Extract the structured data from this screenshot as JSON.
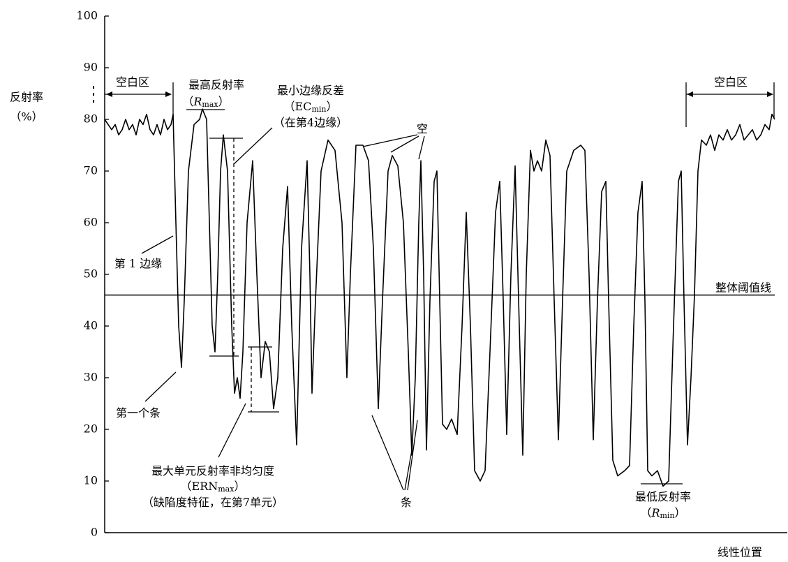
{
  "chart_data": {
    "type": "line",
    "ylabel": [
      "反射率",
      "（%）"
    ],
    "xlabel": "线性位置",
    "ylim": [
      0,
      100
    ],
    "yticks": [
      0,
      10,
      20,
      30,
      40,
      50,
      60,
      70,
      80,
      90,
      100
    ],
    "xlim": [
      0,
      960
    ],
    "color": "#000000",
    "threshold": 46,
    "threshold_label": "整体阈值线",
    "x": [
      0,
      5,
      10,
      15,
      20,
      25,
      30,
      35,
      40,
      45,
      50,
      55,
      60,
      65,
      70,
      75,
      80,
      85,
      90,
      95,
      98,
      102,
      106,
      110,
      114,
      120,
      128,
      136,
      140,
      146,
      150,
      154,
      158,
      162,
      166,
      170,
      176,
      182,
      186,
      190,
      194,
      198,
      204,
      212,
      218,
      224,
      230,
      236,
      242,
      248,
      255,
      262,
      268,
      275,
      282,
      290,
      294,
      297,
      302,
      310,
      320,
      330,
      340,
      347,
      352,
      360,
      370,
      378,
      385,
      392,
      398,
      406,
      412,
      420,
      428,
      435,
      440,
      445,
      450,
      453,
      457,
      461,
      466,
      472,
      476,
      480,
      484,
      490,
      497,
      505,
      512,
      518,
      524,
      530,
      538,
      545,
      552,
      560,
      566,
      571,
      576,
      582,
      588,
      594,
      599,
      604,
      610,
      615,
      620,
      626,
      632,
      638,
      644,
      650,
      656,
      662,
      672,
      682,
      688,
      694,
      700,
      706,
      712,
      718,
      722,
      728,
      735,
      745,
      752,
      758,
      764,
      770,
      774,
      778,
      784,
      792,
      800,
      808,
      815,
      822,
      826,
      830,
      835,
      840,
      845,
      850,
      855,
      862,
      868,
      874,
      880,
      886,
      892,
      898,
      904,
      910,
      916,
      922,
      928,
      934,
      940,
      946,
      952,
      956,
      960
    ],
    "values": [
      80,
      79,
      78,
      79,
      77,
      78,
      80,
      78,
      79,
      77,
      80,
      79,
      81,
      78,
      77,
      79,
      77,
      80,
      78,
      79,
      81,
      60,
      40,
      32,
      45,
      70,
      79,
      80,
      82,
      80,
      60,
      40,
      35,
      50,
      70,
      77,
      70,
      40,
      27,
      30,
      26,
      35,
      60,
      72,
      50,
      30,
      37,
      35,
      24,
      30,
      55,
      67,
      40,
      17,
      55,
      72,
      50,
      27,
      45,
      70,
      76,
      74,
      60,
      30,
      50,
      75,
      75,
      72,
      55,
      24,
      45,
      70,
      73,
      71,
      60,
      35,
      15,
      30,
      60,
      72,
      50,
      16,
      45,
      68,
      70,
      45,
      21,
      20,
      22,
      19,
      40,
      62,
      40,
      12,
      10,
      12,
      35,
      62,
      68,
      45,
      19,
      50,
      71,
      40,
      15,
      50,
      74,
      70,
      72,
      70,
      76,
      73,
      45,
      18,
      45,
      70,
      74,
      75,
      74,
      50,
      18,
      45,
      66,
      68,
      45,
      14,
      11,
      12,
      13,
      40,
      62,
      68,
      45,
      12,
      11,
      12,
      9,
      10,
      40,
      68,
      70,
      45,
      17,
      30,
      46,
      70,
      76,
      75,
      77,
      74,
      77,
      76,
      78,
      76,
      77,
      79,
      76,
      77,
      78,
      76,
      77,
      79,
      78,
      81,
      80
    ],
    "annotations": [
      [
        {
          "t": "空白区"
        }
      ],
      [
        {
          "t": "最高反射率"
        }
      ],
      [
        {
          "t": "（"
        },
        {
          "t": "R",
          "i": true
        },
        {
          "t": "max",
          "sub": true
        },
        {
          "t": "）"
        }
      ],
      [
        {
          "t": "最小边缘反差"
        }
      ],
      [
        {
          "t": "（EC"
        },
        {
          "t": "min",
          "sub": true
        },
        {
          "t": "）"
        }
      ],
      [
        {
          "t": "（在第4边缘）"
        }
      ],
      [
        {
          "t": "第 1 边缘"
        }
      ],
      [
        {
          "t": "第一个条"
        }
      ],
      [
        {
          "t": "最大单元反射率非均匀度"
        }
      ],
      [
        {
          "t": "（ERN"
        },
        {
          "t": "max",
          "sub": true
        },
        {
          "t": "）"
        }
      ],
      [
        {
          "t": "（缺陷度特征，在第7单元）"
        }
      ],
      [
        {
          "t": "空"
        }
      ],
      [
        {
          "t": "条"
        }
      ],
      [
        {
          "t": "空白区"
        }
      ],
      [
        {
          "t": "最低反射率"
        }
      ],
      [
        {
          "t": "（"
        },
        {
          "t": "R",
          "i": true
        },
        {
          "t": "min",
          "sub": true
        },
        {
          "t": "）"
        }
      ]
    ]
  }
}
